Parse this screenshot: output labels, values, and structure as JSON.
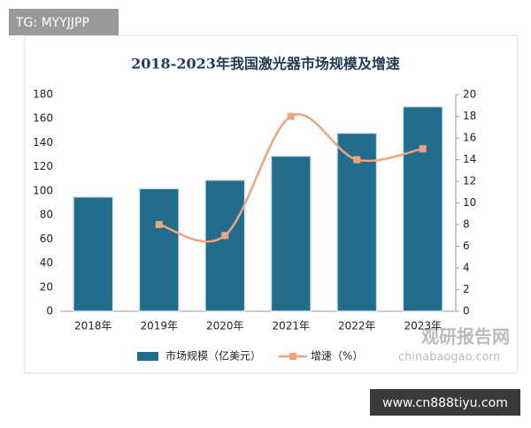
{
  "chart_data": {
    "type": "bar",
    "title": "2018-2023年我国激光器市场规模及增速",
    "categories": [
      "2018年",
      "2019年",
      "2020年",
      "2021年",
      "2022年",
      "2023年"
    ],
    "series": [
      {
        "name": "市场规模（亿美元）",
        "type": "bar",
        "color": "#226c8c",
        "values": [
          95,
          102,
          109,
          129,
          148,
          170
        ]
      },
      {
        "name": "增速（%）",
        "type": "line",
        "axis": "y2",
        "color": "#eea47f",
        "values": [
          null,
          8,
          7,
          18,
          14,
          15
        ]
      }
    ],
    "ylim": [
      0,
      180
    ],
    "yticks": [
      0,
      20,
      40,
      60,
      80,
      100,
      120,
      140,
      160,
      180
    ],
    "y2lim": [
      0,
      20
    ],
    "y2ticks": [
      0,
      2,
      4,
      6,
      8,
      10,
      12,
      14,
      16,
      18,
      20
    ],
    "grid": false,
    "legend": "bottom"
  },
  "watermarks": {
    "tag": "TG: MYYJJPP",
    "logo": "观研报告网",
    "logo_url": "chinabaogao.com",
    "site": "www.cn888tiyu.com"
  }
}
